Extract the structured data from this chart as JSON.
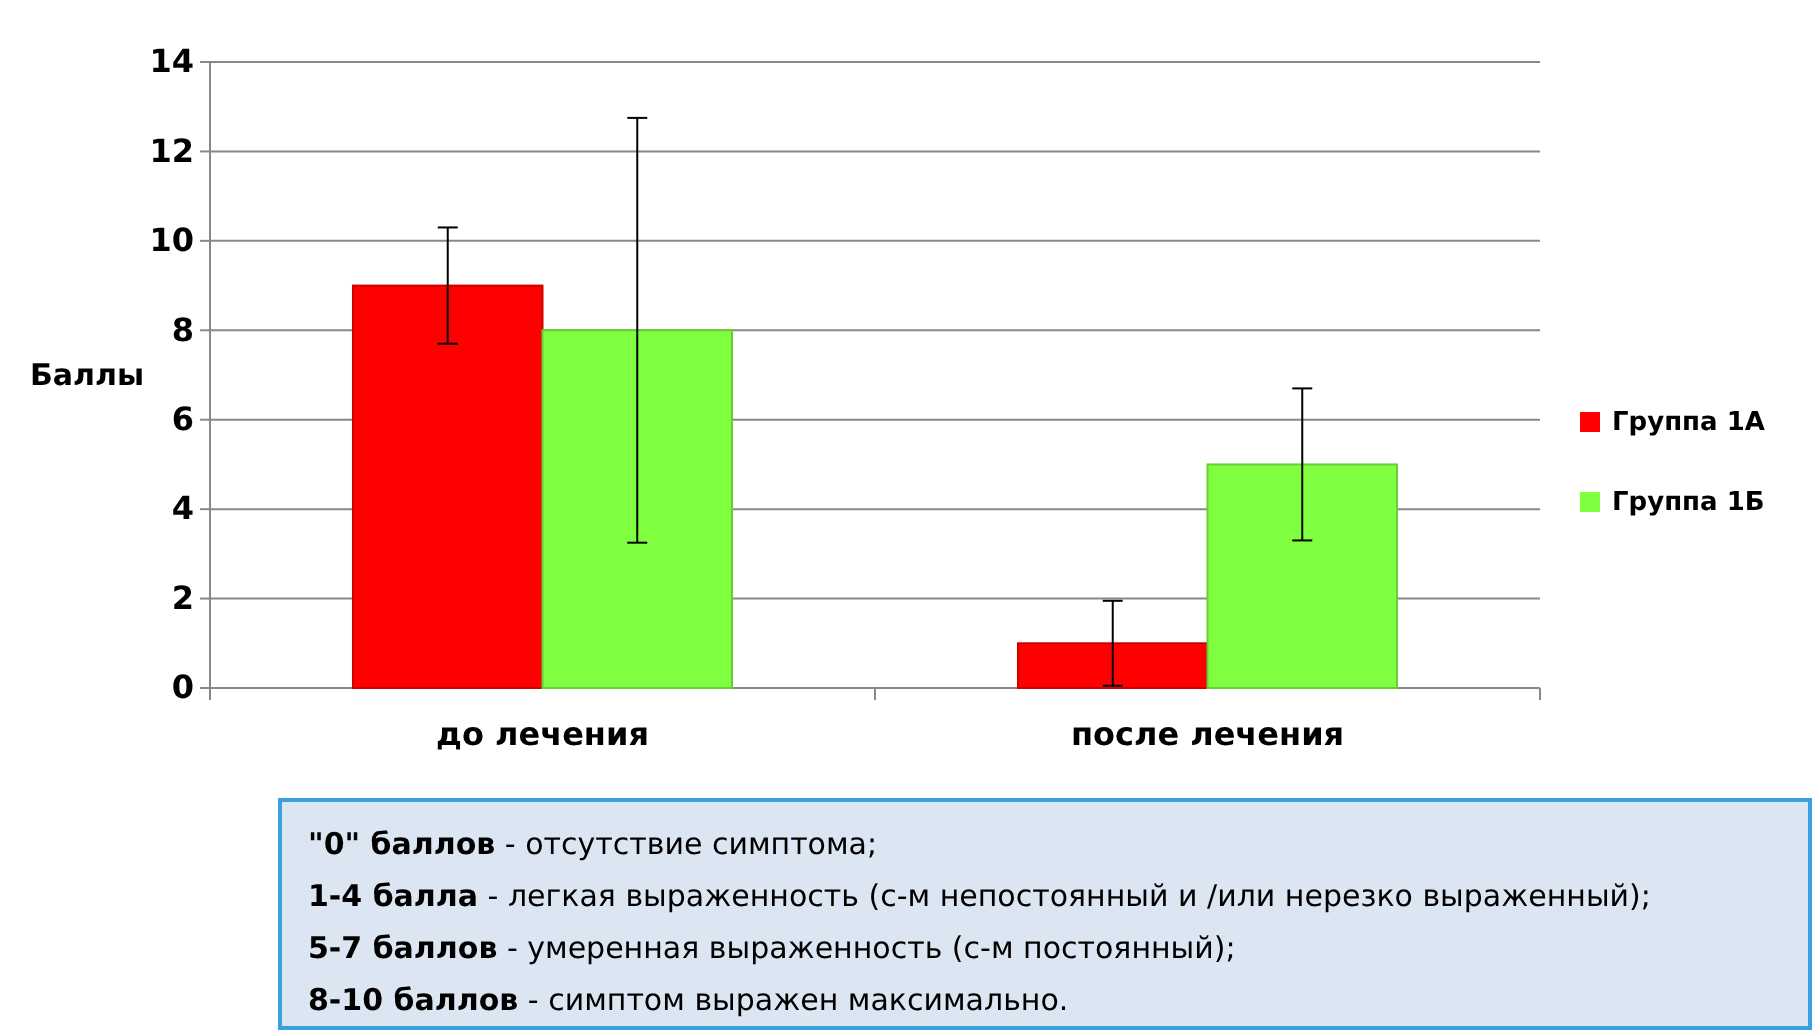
{
  "chart_data": {
    "type": "bar",
    "ylabel": "Баллы",
    "categories": [
      "до лечения",
      "после лечения"
    ],
    "series": [
      {
        "name": "Группа 1А",
        "color": "#ff0000",
        "values": [
          9,
          1
        ],
        "errors": [
          [
            7.7,
            10.3
          ],
          [
            0.05,
            1.95
          ]
        ]
      },
      {
        "name": "Группа 1Б",
        "color": "#80ff40",
        "values": [
          8,
          5
        ],
        "errors": [
          [
            3.25,
            12.75
          ],
          [
            3.3,
            6.7
          ]
        ]
      }
    ],
    "ylim": [
      0,
      14
    ],
    "yticks": [
      0,
      2,
      4,
      6,
      8,
      10,
      12,
      14
    ],
    "grid": "y",
    "legend": "right",
    "annotations": [
      "\"0\" баллов - отсутствие симптома;",
      "1-4 балла - легкая выраженность (с-м непостоянный и /или нерезко выраженный);",
      "5-7 баллов - умеренная выраженность (с-м постоянный);",
      "8-10 баллов - симптом выражен максимально."
    ]
  }
}
